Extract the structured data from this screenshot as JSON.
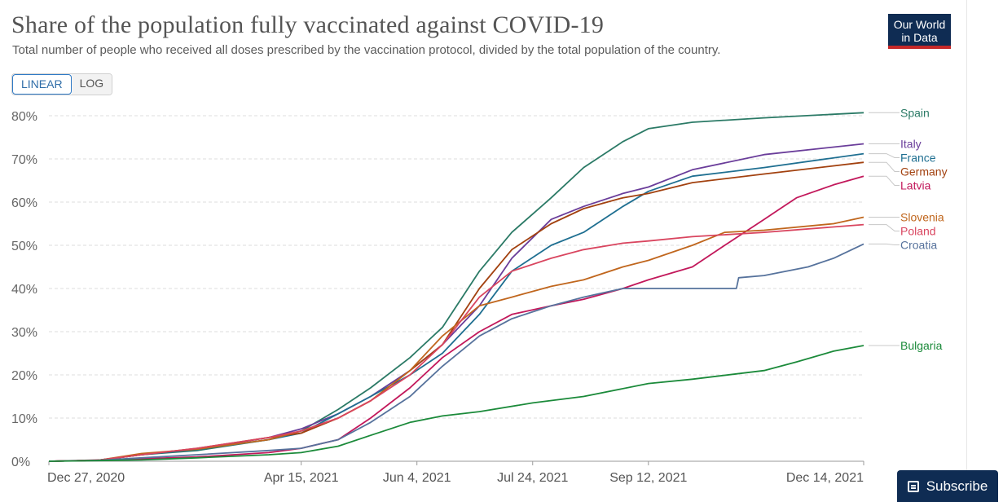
{
  "header": {
    "title": "Share of the population fully vaccinated against COVID-19",
    "subtitle": "Total number of people who received all doses prescribed by the vaccination protocol, divided by the total population of the country.",
    "logo_line1": "Our World",
    "logo_line2": "in Data"
  },
  "scale_toggle": {
    "linear_label": "LINEAR",
    "log_label": "LOG",
    "selected": "LINEAR"
  },
  "subscribe": {
    "label": "Subscribe"
  },
  "colors": {
    "logo_bg": "#0f2c53",
    "logo_accent": "#c62828",
    "toggle_active": "#2f6da8"
  },
  "chart_data": {
    "type": "line",
    "title": "Share of the population fully vaccinated against COVID-19",
    "xlabel": "",
    "ylabel": "",
    "x_range": [
      "2020-12-27",
      "2021-12-14"
    ],
    "x_ticks": [
      "Dec 27, 2020",
      "Apr 15, 2021",
      "Jun 4, 2021",
      "Jul 24, 2021",
      "Sep 12, 2021",
      "Dec 14, 2021"
    ],
    "x_tick_dates": [
      "2020-12-27",
      "2021-04-15",
      "2021-06-04",
      "2021-07-24",
      "2021-09-12",
      "2021-12-14"
    ],
    "y_ticks": [
      "0%",
      "10%",
      "20%",
      "30%",
      "40%",
      "50%",
      "60%",
      "70%",
      "80%"
    ],
    "ylim": [
      0,
      80
    ],
    "y_unit": "%",
    "grid": "horizontal dashed",
    "legend": "right, labels at line ends",
    "series": [
      {
        "name": "Spain",
        "color": "#2b7a66",
        "points": [
          [
            "2020-12-27",
            0
          ],
          [
            "2021-01-17",
            0.2
          ],
          [
            "2021-02-05",
            1.5
          ],
          [
            "2021-03-01",
            2.5
          ],
          [
            "2021-04-01",
            5
          ],
          [
            "2021-04-15",
            7
          ],
          [
            "2021-05-01",
            12
          ],
          [
            "2021-05-15",
            17
          ],
          [
            "2021-06-01",
            24
          ],
          [
            "2021-06-15",
            31
          ],
          [
            "2021-07-01",
            44
          ],
          [
            "2021-07-15",
            53
          ],
          [
            "2021-08-01",
            61
          ],
          [
            "2021-08-15",
            68
          ],
          [
            "2021-09-01",
            74
          ],
          [
            "2021-09-12",
            77
          ],
          [
            "2021-10-01",
            78.5
          ],
          [
            "2021-11-01",
            79.5
          ],
          [
            "2021-12-14",
            80.7
          ]
        ]
      },
      {
        "name": "Italy",
        "color": "#6a3d9a",
        "points": [
          [
            "2020-12-27",
            0
          ],
          [
            "2021-01-17",
            0.2
          ],
          [
            "2021-02-05",
            1.5
          ],
          [
            "2021-03-01",
            2.8
          ],
          [
            "2021-04-01",
            5.5
          ],
          [
            "2021-04-15",
            7.5
          ],
          [
            "2021-05-01",
            11
          ],
          [
            "2021-05-15",
            15
          ],
          [
            "2021-06-01",
            21
          ],
          [
            "2021-06-15",
            27
          ],
          [
            "2021-07-01",
            36
          ],
          [
            "2021-07-15",
            47
          ],
          [
            "2021-08-01",
            56
          ],
          [
            "2021-08-15",
            59
          ],
          [
            "2021-09-01",
            62
          ],
          [
            "2021-09-12",
            63.5
          ],
          [
            "2021-10-01",
            67.5
          ],
          [
            "2021-11-01",
            71
          ],
          [
            "2021-12-14",
            73.5
          ]
        ]
      },
      {
        "name": "France",
        "color": "#1f6f91",
        "points": [
          [
            "2020-12-27",
            0
          ],
          [
            "2021-01-17",
            0.2
          ],
          [
            "2021-02-05",
            1.5
          ],
          [
            "2021-03-01",
            2.7
          ],
          [
            "2021-04-01",
            5
          ],
          [
            "2021-04-15",
            6.5
          ],
          [
            "2021-05-01",
            11
          ],
          [
            "2021-05-15",
            15
          ],
          [
            "2021-06-01",
            20
          ],
          [
            "2021-06-15",
            25
          ],
          [
            "2021-07-01",
            34
          ],
          [
            "2021-07-15",
            44
          ],
          [
            "2021-08-01",
            50
          ],
          [
            "2021-08-15",
            53
          ],
          [
            "2021-09-01",
            59
          ],
          [
            "2021-09-12",
            62.5
          ],
          [
            "2021-10-01",
            66
          ],
          [
            "2021-11-01",
            68
          ],
          [
            "2021-12-14",
            71.2
          ]
        ]
      },
      {
        "name": "Germany",
        "color": "#a2410f",
        "points": [
          [
            "2020-12-27",
            0
          ],
          [
            "2021-01-17",
            0.2
          ],
          [
            "2021-02-05",
            1.5
          ],
          [
            "2021-03-01",
            3
          ],
          [
            "2021-04-01",
            5.5
          ],
          [
            "2021-04-15",
            6.5
          ],
          [
            "2021-05-01",
            10
          ],
          [
            "2021-05-15",
            14
          ],
          [
            "2021-06-01",
            21
          ],
          [
            "2021-06-15",
            27
          ],
          [
            "2021-07-01",
            40
          ],
          [
            "2021-07-15",
            49
          ],
          [
            "2021-08-01",
            55
          ],
          [
            "2021-08-15",
            58.5
          ],
          [
            "2021-09-01",
            61
          ],
          [
            "2021-09-12",
            62
          ],
          [
            "2021-10-01",
            64.5
          ],
          [
            "2021-11-01",
            66.5
          ],
          [
            "2021-12-14",
            69.2
          ]
        ]
      },
      {
        "name": "Latvia",
        "color": "#c2185b",
        "points": [
          [
            "2020-12-27",
            0
          ],
          [
            "2021-02-01",
            0.5
          ],
          [
            "2021-03-01",
            1
          ],
          [
            "2021-04-01",
            2
          ],
          [
            "2021-04-15",
            3
          ],
          [
            "2021-05-01",
            5
          ],
          [
            "2021-05-15",
            10
          ],
          [
            "2021-06-01",
            17
          ],
          [
            "2021-06-15",
            24
          ],
          [
            "2021-07-01",
            30
          ],
          [
            "2021-07-15",
            34
          ],
          [
            "2021-08-01",
            36
          ],
          [
            "2021-08-15",
            37.5
          ],
          [
            "2021-09-01",
            40
          ],
          [
            "2021-09-12",
            42
          ],
          [
            "2021-10-01",
            45
          ],
          [
            "2021-10-15",
            50
          ],
          [
            "2021-11-01",
            56
          ],
          [
            "2021-11-15",
            61
          ],
          [
            "2021-12-01",
            64
          ],
          [
            "2021-12-14",
            66
          ]
        ]
      },
      {
        "name": "Slovenia",
        "color": "#c0661d",
        "points": [
          [
            "2020-12-27",
            0
          ],
          [
            "2021-01-17",
            0.2
          ],
          [
            "2021-02-05",
            1.8
          ],
          [
            "2021-03-01",
            2.8
          ],
          [
            "2021-04-01",
            5
          ],
          [
            "2021-04-15",
            7
          ],
          [
            "2021-05-01",
            10
          ],
          [
            "2021-05-15",
            14
          ],
          [
            "2021-06-01",
            21
          ],
          [
            "2021-06-15",
            29
          ],
          [
            "2021-07-01",
            36
          ],
          [
            "2021-07-15",
            38
          ],
          [
            "2021-08-01",
            40.5
          ],
          [
            "2021-08-15",
            42
          ],
          [
            "2021-09-01",
            45
          ],
          [
            "2021-09-12",
            46.5
          ],
          [
            "2021-10-01",
            50
          ],
          [
            "2021-10-15",
            53
          ],
          [
            "2021-11-01",
            53.5
          ],
          [
            "2021-12-01",
            55
          ],
          [
            "2021-12-14",
            56.5
          ]
        ]
      },
      {
        "name": "Poland",
        "color": "#d9455f",
        "points": [
          [
            "2020-12-27",
            0
          ],
          [
            "2021-01-17",
            0.2
          ],
          [
            "2021-02-05",
            1.5
          ],
          [
            "2021-03-01",
            3
          ],
          [
            "2021-04-01",
            5.5
          ],
          [
            "2021-04-15",
            7
          ],
          [
            "2021-05-01",
            10
          ],
          [
            "2021-05-15",
            14
          ],
          [
            "2021-06-01",
            20
          ],
          [
            "2021-06-15",
            27
          ],
          [
            "2021-07-01",
            38
          ],
          [
            "2021-07-15",
            44
          ],
          [
            "2021-08-01",
            47
          ],
          [
            "2021-08-15",
            49
          ],
          [
            "2021-09-01",
            50.5
          ],
          [
            "2021-09-12",
            51
          ],
          [
            "2021-10-01",
            52
          ],
          [
            "2021-11-01",
            53
          ],
          [
            "2021-12-14",
            54.8
          ]
        ]
      },
      {
        "name": "Croatia",
        "color": "#56729c",
        "points": [
          [
            "2020-12-27",
            0
          ],
          [
            "2021-01-17",
            0.2
          ],
          [
            "2021-02-05",
            0.8
          ],
          [
            "2021-03-01",
            1.5
          ],
          [
            "2021-04-01",
            2.5
          ],
          [
            "2021-04-15",
            3
          ],
          [
            "2021-05-01",
            5
          ],
          [
            "2021-05-15",
            9
          ],
          [
            "2021-06-01",
            15
          ],
          [
            "2021-06-15",
            22
          ],
          [
            "2021-07-01",
            29
          ],
          [
            "2021-07-15",
            33
          ],
          [
            "2021-08-01",
            36
          ],
          [
            "2021-08-15",
            38
          ],
          [
            "2021-09-01",
            40
          ],
          [
            "2021-10-01",
            40
          ],
          [
            "2021-10-20",
            40
          ],
          [
            "2021-10-21",
            42.5
          ],
          [
            "2021-11-01",
            43
          ],
          [
            "2021-11-20",
            45
          ],
          [
            "2021-12-01",
            47
          ],
          [
            "2021-12-14",
            50.3
          ]
        ]
      },
      {
        "name": "Bulgaria",
        "color": "#1b8a3a",
        "points": [
          [
            "2020-12-27",
            0
          ],
          [
            "2021-02-05",
            0.3
          ],
          [
            "2021-03-01",
            0.8
          ],
          [
            "2021-04-01",
            1.5
          ],
          [
            "2021-04-15",
            2
          ],
          [
            "2021-05-01",
            3.5
          ],
          [
            "2021-05-15",
            6
          ],
          [
            "2021-06-01",
            9
          ],
          [
            "2021-06-15",
            10.5
          ],
          [
            "2021-07-01",
            11.5
          ],
          [
            "2021-07-24",
            13.5
          ],
          [
            "2021-08-15",
            15
          ],
          [
            "2021-09-12",
            18
          ],
          [
            "2021-10-01",
            19
          ],
          [
            "2021-11-01",
            21
          ],
          [
            "2021-11-15",
            23
          ],
          [
            "2021-12-01",
            25.5
          ],
          [
            "2021-12-14",
            26.8
          ]
        ]
      }
    ]
  }
}
